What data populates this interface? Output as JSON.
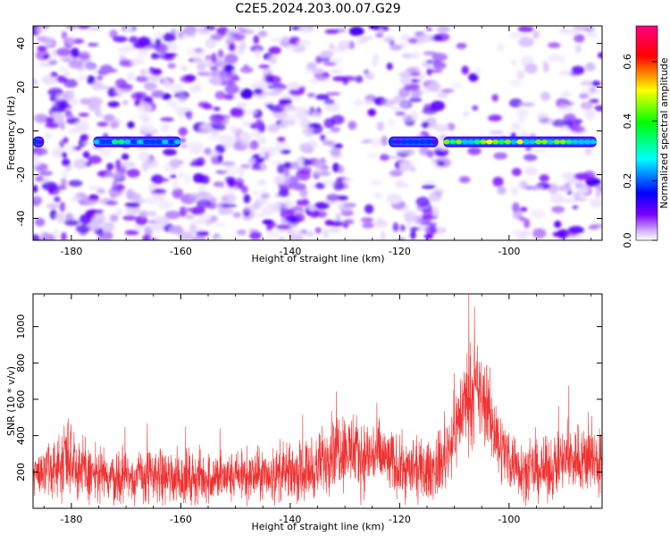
{
  "title": "C2E5.2024.203.00.07.G29",
  "chart_data": [
    {
      "type": "heatmap",
      "xlabel": "Height of straight line (km)",
      "ylabel": "Frequency (Hz)",
      "xlim": [
        -187,
        -83
      ],
      "ylim": [
        -50,
        48
      ],
      "xticks": [
        -180,
        -160,
        -140,
        -120,
        -100
      ],
      "yticks": [
        -40,
        -20,
        0,
        20,
        40
      ],
      "colorbar": {
        "label": "Normalized spectral amplitude",
        "range": [
          0.0,
          0.72
        ],
        "ticks": [
          0.0,
          0.2,
          0.4,
          0.6
        ],
        "colormap": [
          "#ffffff",
          "#7b00ff",
          "#0000ff",
          "#00ffff",
          "#00ff00",
          "#ffff00",
          "#ff0000",
          "#ff0080"
        ]
      },
      "signal_segments": [
        {
          "x": [
            -187,
            -185
          ],
          "freq": -5,
          "amplitude": 0.2
        },
        {
          "x": [
            -176,
            -160
          ],
          "freq": -5,
          "amplitude": 0.3
        },
        {
          "x": [
            -122,
            -113
          ],
          "freq": -5,
          "amplitude": 0.2
        },
        {
          "x": [
            -112,
            -84
          ],
          "freq": -5,
          "amplitude": 0.45
        }
      ]
    },
    {
      "type": "line",
      "xlabel": "Height of straight line (km)",
      "ylabel": "SNR (10 * v/v)",
      "xlim": [
        -187,
        -83
      ],
      "ylim": [
        0,
        1180
      ],
      "xticks": [
        -180,
        -160,
        -140,
        -120,
        -100
      ],
      "yticks": [
        200,
        400,
        600,
        800,
        1000
      ],
      "series": [
        {
          "color": "#f03232",
          "envelope": {
            "x": [
              -187,
              -182,
              -181,
              -178,
              -175,
              -170,
              -165,
              -160,
              -155,
              -150,
              -145,
              -140,
              -135,
              -132,
              -130,
              -127,
              -124,
              -120,
              -115,
              -112,
              -110,
              -108,
              -106,
              -104,
              -102,
              -100,
              -97,
              -93,
              -90,
              -87,
              -83
            ],
            "base": [
              200,
              220,
              330,
              200,
              180,
              170,
              180,
              170,
              170,
              170,
              180,
              190,
              220,
              350,
              330,
              280,
              300,
              220,
              200,
              260,
              420,
              600,
              640,
              560,
              360,
              280,
              200,
              210,
              260,
              280,
              250
            ],
            "spread": [
              140,
              200,
              300,
              220,
              200,
              180,
              190,
              180,
              180,
              170,
              180,
              190,
              210,
              280,
              260,
              240,
              250,
              200,
              200,
              220,
              260,
              320,
              330,
              280,
              240,
              220,
              190,
              200,
              220,
              240,
              230
            ]
          }
        }
      ]
    }
  ]
}
